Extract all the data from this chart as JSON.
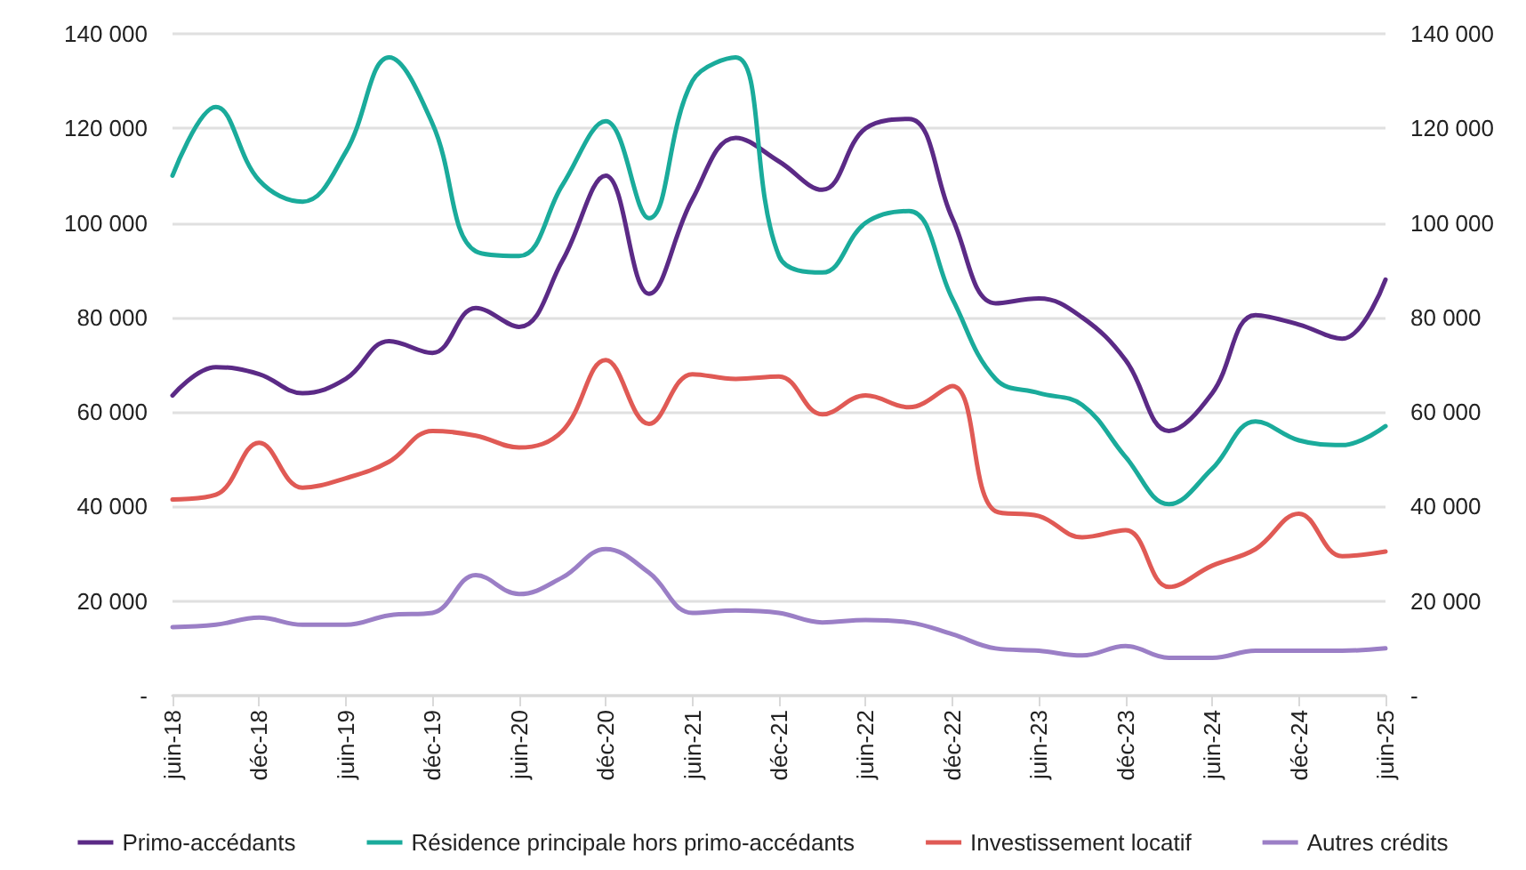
{
  "chart_data": {
    "type": "line",
    "categories": [
      "juin-18",
      null,
      "déc-18",
      null,
      "juin-19",
      null,
      "déc-19",
      null,
      "juin-20",
      null,
      "déc-20",
      null,
      "juin-21",
      null,
      "déc-21",
      null,
      "juin-22",
      null,
      "déc-22",
      null,
      "juin-23",
      null,
      "déc-23",
      null,
      "juin-24",
      null,
      "déc-24",
      null,
      "juin-25"
    ],
    "series": [
      {
        "name": "Primo-accédants",
        "color": "#5b2a86",
        "values": [
          63500,
          69500,
          68000,
          64000,
          67000,
          75000,
          72500,
          82000,
          78000,
          92000,
          110000,
          85000,
          105000,
          118000,
          113000,
          107000,
          120000,
          122000,
          101000,
          83000,
          84000,
          80000,
          71000,
          56000,
          64000,
          80500,
          78500,
          75500,
          88000
        ]
      },
      {
        "name": "Résidence principale hors primo-accédants",
        "color": "#1aab9b",
        "values": [
          110000,
          124500,
          109000,
          104500,
          115000,
          135000,
          121000,
          94000,
          93000,
          108000,
          121500,
          101000,
          130000,
          135000,
          93000,
          89500,
          100000,
          102500,
          84000,
          67000,
          64000,
          61500,
          50500,
          40500,
          48000,
          58000,
          54000,
          53000,
          57000
        ]
      },
      {
        "name": "Investissement locatif",
        "color": "#e05a55",
        "values": [
          41500,
          42500,
          53500,
          44000,
          46000,
          49500,
          56000,
          55000,
          52500,
          56000,
          71000,
          57500,
          68000,
          67000,
          67500,
          59500,
          63500,
          61000,
          65500,
          39000,
          38000,
          33500,
          35000,
          23000,
          27500,
          31000,
          38500,
          29500,
          30500
        ]
      },
      {
        "name": "Autres crédits",
        "color": "#9b7fc6",
        "values": [
          14500,
          15000,
          16500,
          15000,
          15000,
          17000,
          17500,
          25500,
          21500,
          25000,
          31000,
          26000,
          17500,
          18000,
          17500,
          15500,
          16000,
          15500,
          13000,
          10000,
          9500,
          8500,
          10500,
          8000,
          8000,
          9500,
          9500,
          9500,
          10000
        ]
      }
    ],
    "ylim": [
      0,
      140000
    ],
    "yticks": [
      {
        "value": 0,
        "label": "-"
      },
      {
        "value": 20000,
        "label": "20 000"
      },
      {
        "value": 40000,
        "label": "40 000"
      },
      {
        "value": 60000,
        "label": "60 000"
      },
      {
        "value": 80000,
        "label": "80 000"
      },
      {
        "value": 100000,
        "label": "100 000"
      },
      {
        "value": 120000,
        "label": "120 000"
      },
      {
        "value": 140000,
        "label": "140 000"
      }
    ],
    "y2lim": [
      0,
      140000
    ],
    "y2ticks": [
      {
        "value": 0,
        "label": "-"
      },
      {
        "value": 20000,
        "label": "20 000"
      },
      {
        "value": 40000,
        "label": "40 000"
      },
      {
        "value": 60000,
        "label": "60 000"
      },
      {
        "value": 80000,
        "label": "80 000"
      },
      {
        "value": 100000,
        "label": "100 000"
      },
      {
        "value": 120000,
        "label": "120 000"
      },
      {
        "value": 140000,
        "label": "140 000"
      }
    ],
    "grid": "y",
    "legend": "bottom",
    "marker": "none",
    "line_style": "solid"
  }
}
